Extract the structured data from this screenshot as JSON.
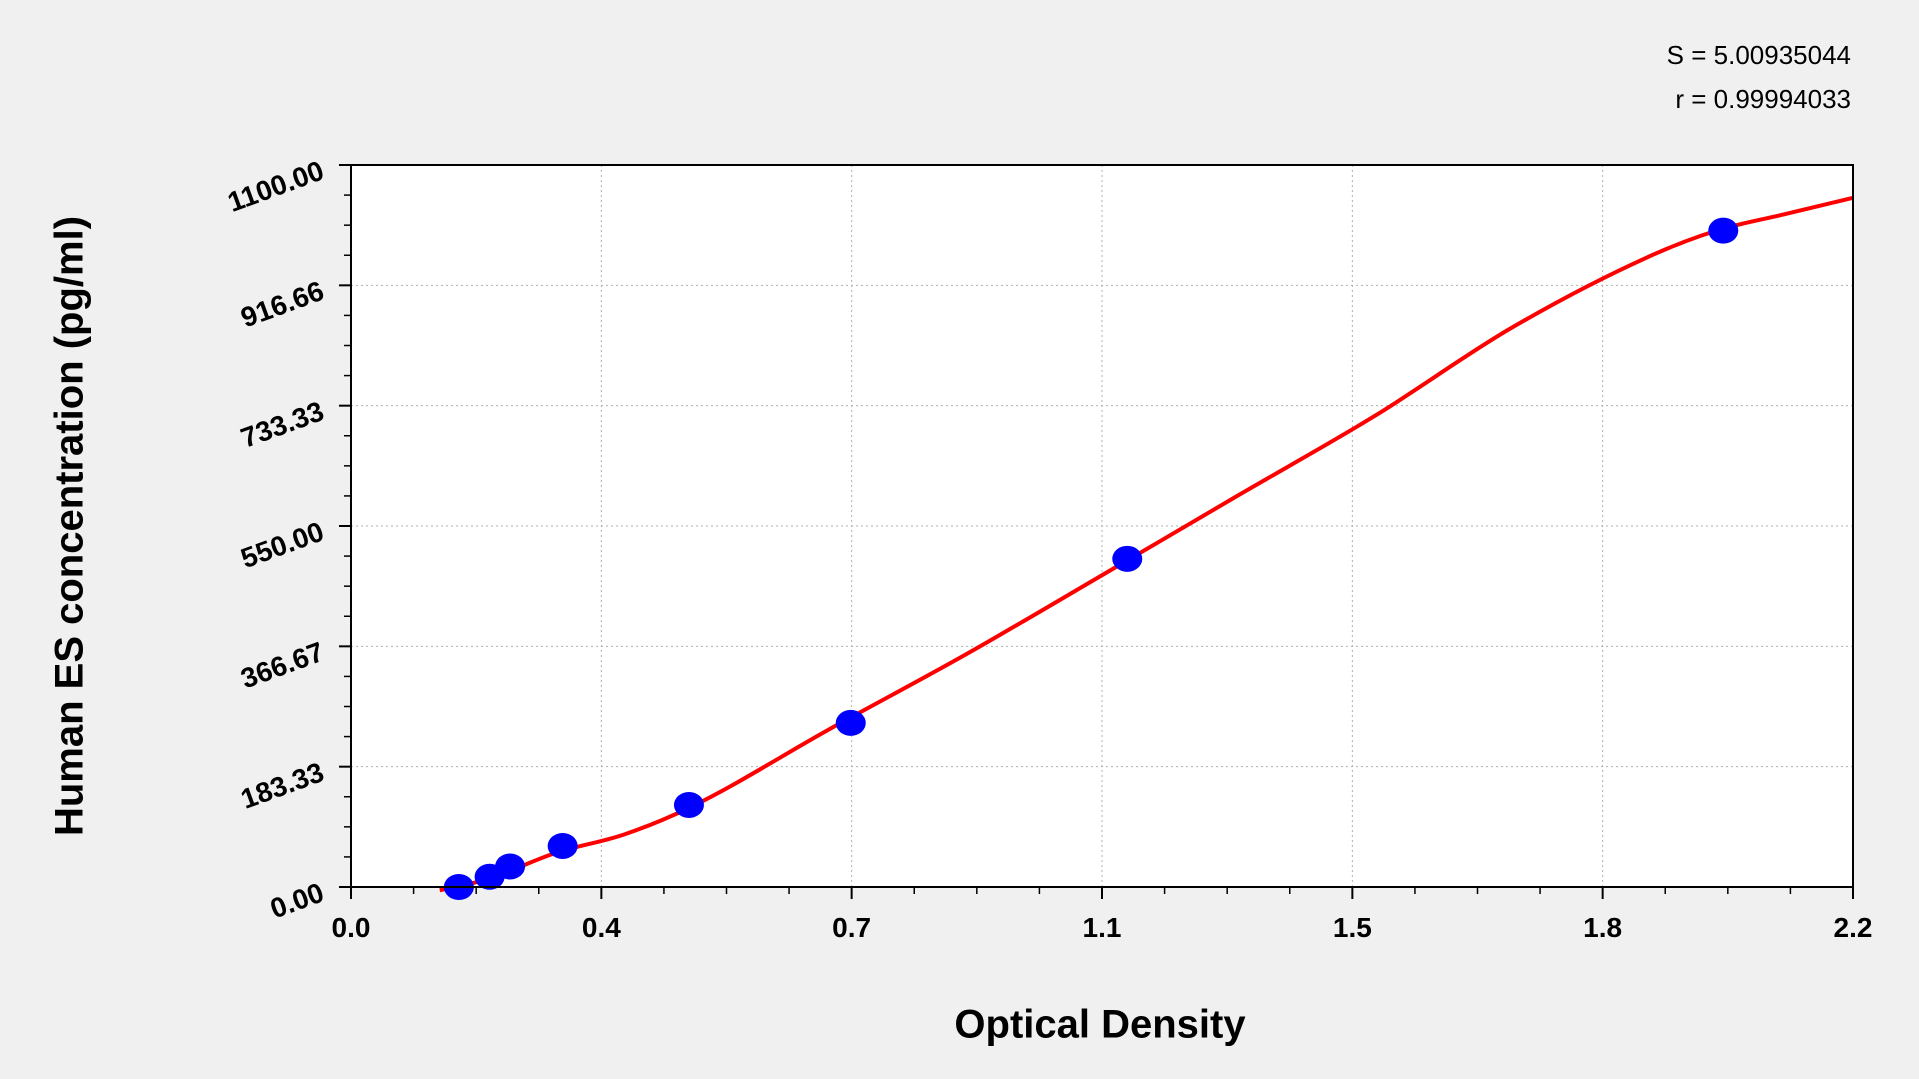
{
  "chart_data": {
    "type": "scatter",
    "title": "",
    "xlabel": "Optical Density",
    "ylabel": "Human ES concentration (pg/ml)",
    "xlim": [
      0,
      2.2
    ],
    "ylim": [
      0,
      1100
    ],
    "x_ticks": [
      0,
      0.3667,
      0.7333,
      1.1,
      1.4667,
      1.8333,
      2.2
    ],
    "x_tick_labels": [
      "0.0",
      "0.4",
      "0.7",
      "1.1",
      "1.5",
      "1.8",
      "2.2"
    ],
    "y_ticks": [
      0,
      183.33,
      366.67,
      550,
      733.33,
      916.66,
      1100
    ],
    "y_tick_labels": [
      "0.00",
      "183.33",
      "366.67",
      "550.00",
      "733.33",
      "916.66",
      "1100.00"
    ],
    "grid": true,
    "annotations": [
      "S = 5.00935044",
      "r = 0.99994033"
    ],
    "series": [
      {
        "type": "scatter",
        "color": "#0000ff",
        "x": [
          0.158,
          0.203,
          0.233,
          0.31,
          0.495,
          0.732,
          1.137,
          2.01
        ],
        "y": [
          0,
          15.6,
          31.25,
          62.5,
          125,
          250,
          500,
          1000
        ]
      },
      {
        "type": "line",
        "color": "#ff0000",
        "x": [
          0.13,
          0.2,
          0.3,
          0.4,
          0.5,
          0.7,
          0.9,
          1.1,
          1.3,
          1.5,
          1.7,
          1.9,
          2.0,
          2.1,
          2.2
        ],
        "y": [
          -5,
          12,
          52,
          80,
          123,
          240,
          354,
          475,
          597,
          718,
          852,
          960,
          1000,
          1025,
          1050
        ]
      }
    ]
  }
}
